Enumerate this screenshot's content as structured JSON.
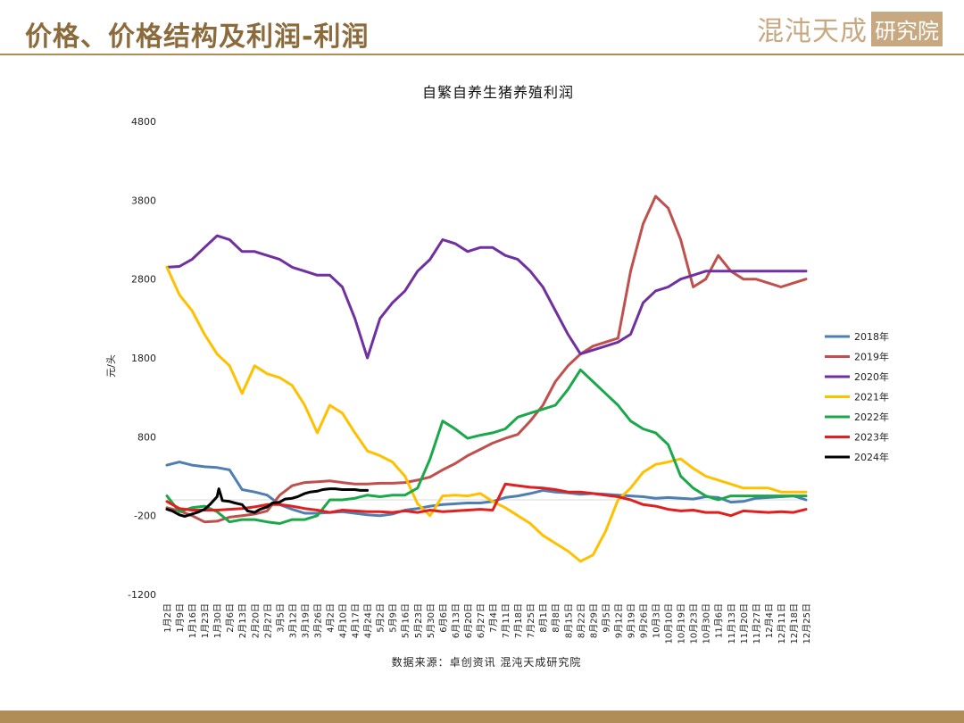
{
  "header": {
    "title": "价格、价格结构及利润-利润",
    "logo_text": "混沌天成",
    "logo_seal": "研究院"
  },
  "colors": {
    "brand": "#8b6a3b",
    "rule": "#b08d57"
  },
  "chart_data": {
    "type": "line",
    "title": "自繁自养生猪养殖利润",
    "ylabel": "元/头",
    "xlabel": "",
    "source": "数据来源：卓创资讯 混沌天成研究院",
    "ylim": [
      -1200,
      4800
    ],
    "yticks": [
      4800,
      3800,
      2800,
      1800,
      800,
      -200,
      -1200
    ],
    "xticks": [
      "1月2日",
      "1月9日",
      "1月16日",
      "1月23日",
      "1月30日",
      "2月6日",
      "2月13日",
      "2月20日",
      "2月27日",
      "3月5日",
      "3月12日",
      "3月19日",
      "3月26日",
      "4月2日",
      "4月10日",
      "4月17日",
      "4月24日",
      "5月2日",
      "5月9日",
      "5月16日",
      "5月23日",
      "5月30日",
      "6月6日",
      "6月13日",
      "6月20日",
      "6月27日",
      "7月4日",
      "7月11日",
      "7月18日",
      "7月25日",
      "8月1日",
      "8月8日",
      "8月15日",
      "8月22日",
      "8月29日",
      "9月5日",
      "9月12日",
      "9月19日",
      "9月26日",
      "10月3日",
      "10月10日",
      "10月19日",
      "10月23日",
      "10月30日",
      "11月6日",
      "11月13日",
      "11月20日",
      "11月27日",
      "12月4日",
      "12月11日",
      "12月18日",
      "12月25日"
    ],
    "legend_position": "right",
    "grid": false,
    "series": [
      {
        "name": "2018年",
        "color": "#4e7fb0",
        "x": [
          0,
          7,
          14,
          21,
          28,
          35,
          42,
          49,
          56,
          63,
          70,
          77,
          84,
          91,
          98,
          105,
          112,
          119,
          126,
          133,
          140,
          147,
          154,
          161,
          168,
          175,
          182,
          189,
          196,
          203,
          210,
          217,
          224,
          231,
          238,
          245,
          252,
          259,
          266,
          273,
          280,
          287,
          294,
          301,
          308,
          315,
          322,
          329,
          336,
          343,
          350,
          357
        ],
        "y": [
          440,
          480,
          440,
          420,
          410,
          380,
          130,
          100,
          60,
          -60,
          -120,
          -170,
          -170,
          -160,
          -150,
          -170,
          -190,
          -200,
          -180,
          -130,
          -110,
          -80,
          -60,
          -50,
          -40,
          -40,
          -20,
          30,
          50,
          80,
          120,
          100,
          90,
          70,
          80,
          70,
          60,
          50,
          40,
          20,
          30,
          20,
          10,
          40,
          30,
          -30,
          -20,
          20,
          30,
          40,
          50,
          0
        ]
      },
      {
        "name": "2019年",
        "color": "#c0504d",
        "x": [
          0,
          7,
          14,
          21,
          28,
          35,
          42,
          49,
          56,
          63,
          70,
          77,
          84,
          91,
          98,
          105,
          112,
          119,
          126,
          133,
          140,
          147,
          154,
          161,
          168,
          175,
          182,
          189,
          196,
          203,
          210,
          217,
          224,
          231,
          238,
          245,
          252,
          259,
          266,
          273,
          280,
          287,
          294,
          301,
          308,
          315,
          322,
          329,
          336,
          343,
          350,
          357
        ],
        "y": [
          -100,
          -140,
          -200,
          -280,
          -270,
          -220,
          -200,
          -180,
          -140,
          60,
          180,
          220,
          230,
          240,
          220,
          200,
          200,
          210,
          210,
          220,
          250,
          290,
          380,
          460,
          560,
          640,
          720,
          780,
          830,
          1000,
          1200,
          1500,
          1700,
          1850,
          1950,
          2000,
          2050,
          2900,
          3500,
          3850,
          3700,
          3300,
          2700,
          2800,
          3100,
          2900,
          2800,
          2800,
          2750,
          2700,
          2750,
          2800
        ]
      },
      {
        "name": "2020年",
        "color": "#7030a0",
        "x": [
          0,
          7,
          14,
          21,
          28,
          35,
          42,
          49,
          56,
          63,
          70,
          77,
          84,
          91,
          98,
          105,
          112,
          119,
          126,
          133,
          140,
          147,
          154,
          161,
          168,
          175,
          182,
          189,
          196,
          203,
          210,
          217,
          224,
          231,
          238,
          245,
          252,
          259,
          266,
          273,
          280,
          287,
          294,
          301,
          308,
          315,
          322,
          329,
          336,
          343,
          350,
          357
        ],
        "y": [
          2950,
          2960,
          3050,
          3200,
          3350,
          3300,
          3150,
          3150,
          3100,
          3050,
          2950,
          2900,
          2850,
          2850,
          2700,
          2300,
          1800,
          2300,
          2500,
          2650,
          2900,
          3050,
          3300,
          3250,
          3150,
          3200,
          3200,
          3100,
          3050,
          2900,
          2700,
          2400,
          2100,
          1850,
          1900,
          1950,
          2000,
          2100,
          2500,
          2650,
          2700,
          2800,
          2850,
          2900,
          2900,
          2900,
          2900,
          2900,
          2900,
          2900,
          2900,
          2900
        ]
      },
      {
        "name": "2021年",
        "color": "#ffc000",
        "x": [
          0,
          7,
          14,
          21,
          28,
          35,
          42,
          49,
          56,
          63,
          70,
          77,
          84,
          91,
          98,
          105,
          112,
          119,
          126,
          133,
          140,
          147,
          154,
          161,
          168,
          175,
          182,
          189,
          196,
          203,
          210,
          217,
          224,
          231,
          238,
          245,
          252,
          259,
          266,
          273,
          280,
          287,
          294,
          301,
          308,
          315,
          322,
          329,
          336,
          343,
          350,
          357
        ],
        "y": [
          2950,
          2600,
          2400,
          2100,
          1850,
          1700,
          1350,
          1700,
          1600,
          1550,
          1450,
          1200,
          850,
          1200,
          1100,
          850,
          620,
          560,
          480,
          300,
          -50,
          -200,
          50,
          60,
          50,
          80,
          -20,
          -100,
          -200,
          -300,
          -450,
          -550,
          -650,
          -780,
          -700,
          -400,
          0,
          150,
          350,
          450,
          480,
          520,
          400,
          300,
          250,
          200,
          150,
          150,
          150,
          100,
          100,
          100
        ]
      },
      {
        "name": "2022年",
        "color": "#1aa84a",
        "x": [
          0,
          7,
          14,
          21,
          28,
          35,
          42,
          49,
          56,
          63,
          70,
          77,
          84,
          91,
          98,
          105,
          112,
          119,
          126,
          133,
          140,
          147,
          154,
          161,
          168,
          175,
          182,
          189,
          196,
          203,
          210,
          217,
          224,
          231,
          238,
          245,
          252,
          259,
          266,
          273,
          280,
          287,
          294,
          301,
          308,
          315,
          322,
          329,
          336,
          343,
          350,
          357
        ],
        "y": [
          50,
          -150,
          -100,
          -80,
          -150,
          -280,
          -250,
          -250,
          -280,
          -300,
          -250,
          -250,
          -200,
          0,
          0,
          20,
          60,
          40,
          60,
          60,
          150,
          520,
          1000,
          900,
          780,
          820,
          850,
          900,
          1050,
          1100,
          1150,
          1200,
          1400,
          1650,
          1500,
          1350,
          1200,
          1000,
          900,
          850,
          700,
          300,
          150,
          50,
          0,
          50,
          50,
          50,
          50,
          50,
          50,
          50
        ]
      },
      {
        "name": "2023年",
        "color": "#e02020",
        "x": [
          0,
          7,
          14,
          21,
          28,
          35,
          42,
          49,
          56,
          63,
          70,
          77,
          84,
          91,
          98,
          105,
          112,
          119,
          126,
          133,
          140,
          147,
          154,
          161,
          168,
          175,
          182,
          189,
          196,
          203,
          210,
          217,
          224,
          231,
          238,
          245,
          252,
          259,
          266,
          273,
          280,
          287,
          294,
          301,
          308,
          315,
          322,
          329,
          336,
          343,
          350,
          357
        ],
        "y": [
          -20,
          -110,
          -130,
          -130,
          -130,
          -120,
          -110,
          -90,
          -60,
          -60,
          -80,
          -110,
          -130,
          -160,
          -130,
          -140,
          -150,
          -150,
          -160,
          -140,
          -160,
          -130,
          -150,
          -140,
          -130,
          -120,
          -130,
          200,
          180,
          160,
          150,
          130,
          100,
          100,
          80,
          60,
          40,
          0,
          -60,
          -80,
          -120,
          -140,
          -130,
          -160,
          -160,
          -200,
          -140,
          -150,
          -160,
          -150,
          -160,
          -120
        ]
      },
      {
        "name": "2024年",
        "color": "#000000",
        "x": [
          0,
          3,
          7,
          10,
          14,
          17,
          21,
          24,
          28,
          29,
          31,
          35,
          38,
          42,
          45,
          49,
          52,
          56,
          59,
          63,
          66,
          70,
          73,
          77,
          80,
          84,
          87,
          91,
          94,
          98,
          101,
          105,
          108,
          112
        ],
        "y": [
          -120,
          -140,
          -190,
          -210,
          -180,
          -160,
          -120,
          -60,
          40,
          140,
          -10,
          -20,
          -40,
          -60,
          -140,
          -160,
          -120,
          -90,
          -40,
          -30,
          10,
          20,
          40,
          80,
          100,
          110,
          130,
          140,
          140,
          130,
          130,
          130,
          120,
          120
        ]
      }
    ]
  }
}
